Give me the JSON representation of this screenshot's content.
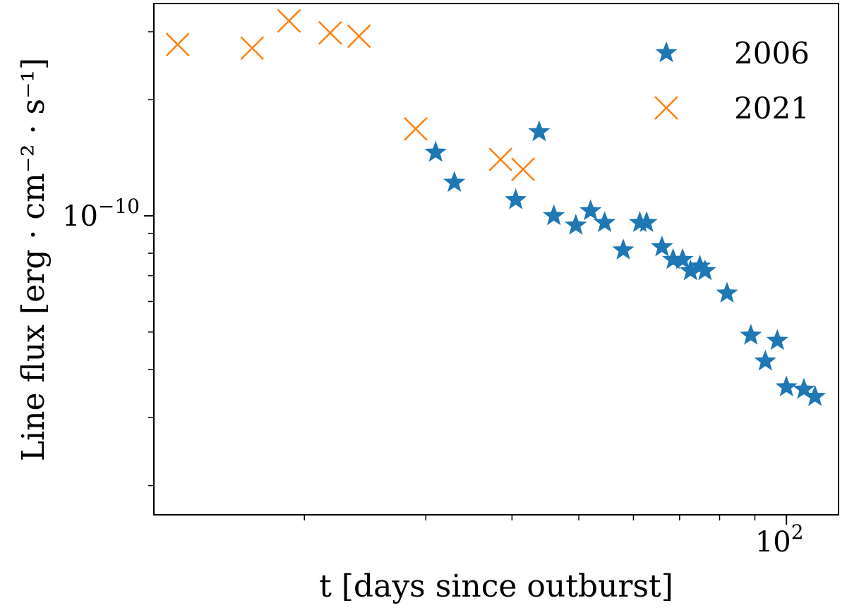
{
  "chart_data": {
    "type": "scatter",
    "xscale": "log",
    "yscale": "log",
    "xlim": [
      12.1,
      119
    ],
    "ylim": [
      1.68e-11,
      3.55e-10
    ],
    "xlabel": "t [days since outburst]",
    "ylabel": "Line flux [erg · cm⁻² · s⁻¹]",
    "xticks_major": [
      {
        "value": 100,
        "label": "10",
        "exp": "2"
      }
    ],
    "yticks_major": [
      {
        "value": 1e-10,
        "label": "10",
        "exp": "−10"
      }
    ],
    "xticks_minor": [
      20,
      30,
      40,
      50,
      60,
      70,
      80,
      90
    ],
    "yticks_minor": [
      2e-11,
      3e-11,
      4e-11,
      5e-11,
      6e-11,
      7e-11,
      8e-11,
      9e-11,
      2e-10,
      3e-10
    ],
    "grid": false,
    "legend_position": "top-right",
    "series": [
      {
        "name": "2006",
        "marker": "star",
        "color": "#1f77b4",
        "points": [
          [
            31.0,
            1.46e-10
          ],
          [
            33.0,
            1.22e-10
          ],
          [
            40.5,
            1.1e-10
          ],
          [
            43.8,
            1.65e-10
          ],
          [
            46.0,
            1e-10
          ],
          [
            49.5,
            9.45e-11
          ],
          [
            52.0,
            1.03e-10
          ],
          [
            54.5,
            9.6e-11
          ],
          [
            58.0,
            8.15e-11
          ],
          [
            61.3,
            9.6e-11
          ],
          [
            62.7,
            9.6e-11
          ],
          [
            66.0,
            8.3e-11
          ],
          [
            68.5,
            7.7e-11
          ],
          [
            70.7,
            7.7e-11
          ],
          [
            72.6,
            7.2e-11
          ],
          [
            74.9,
            7.4e-11
          ],
          [
            76.2,
            7.2e-11
          ],
          [
            82.0,
            6.3e-11
          ],
          [
            88.8,
            4.9e-11
          ],
          [
            93.2,
            4.2e-11
          ],
          [
            97.0,
            4.75e-11
          ],
          [
            100.0,
            3.6e-11
          ],
          [
            106.0,
            3.55e-11
          ],
          [
            110.0,
            3.4e-11
          ]
        ]
      },
      {
        "name": "2021",
        "marker": "x",
        "color": "#ff7f0e",
        "points": [
          [
            13.1,
            2.78e-10
          ],
          [
            16.8,
            2.72e-10
          ],
          [
            19.0,
            3.2e-10
          ],
          [
            21.8,
            2.98e-10
          ],
          [
            24.0,
            2.92e-10
          ],
          [
            29.0,
            1.68e-10
          ],
          [
            38.5,
            1.4e-10
          ],
          [
            41.5,
            1.32e-10
          ]
        ]
      }
    ]
  }
}
